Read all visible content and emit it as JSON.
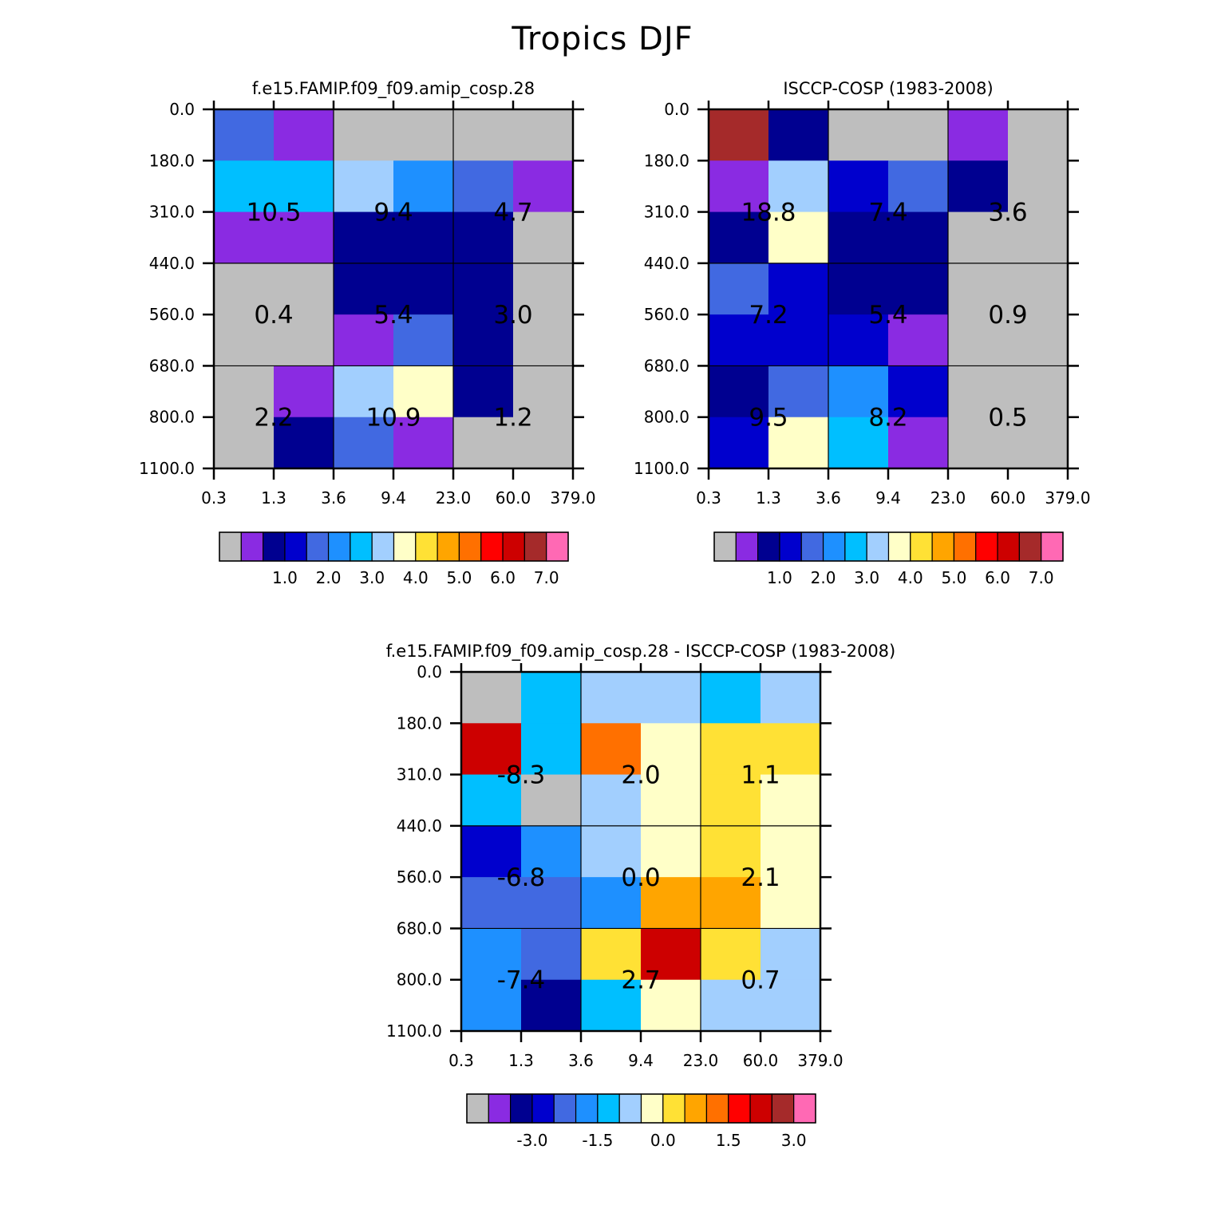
{
  "title": "Tropics DJF",
  "chart_data": [
    {
      "id": "model",
      "type": "heatmap",
      "title": "f.e15.FAMIP.f09_f09.amip_cosp.28",
      "x_tick_labels": [
        "0.3",
        "1.3",
        "3.6",
        "9.4",
        "23.0",
        "60.0",
        "379.0"
      ],
      "y_tick_labels": [
        "0.0",
        "180.0",
        "310.0",
        "440.0",
        "560.0",
        "680.0",
        "800.0",
        "1100.0"
      ],
      "colors": [
        [
          "royalblue",
          "blueviolet",
          "gray",
          "gray",
          "gray",
          "gray"
        ],
        [
          "deepskyblue",
          "deepskyblue",
          "lightblue",
          "dodgerblue",
          "royalblue",
          "blueviolet"
        ],
        [
          "blueviolet",
          "blueviolet",
          "navy",
          "navy",
          "navy",
          "gray"
        ],
        [
          "gray",
          "gray",
          "navy",
          "navy",
          "navy",
          "gray"
        ],
        [
          "gray",
          "gray",
          "blueviolet",
          "royalblue",
          "navy",
          "gray"
        ],
        [
          "gray",
          "blueviolet",
          "lightblue",
          "lightyellow",
          "navy",
          "gray"
        ],
        [
          "gray",
          "navy",
          "royalblue",
          "blueviolet",
          "gray",
          "gray"
        ]
      ],
      "box_values": [
        [
          "10.5",
          "9.4",
          "4.7"
        ],
        [
          "0.4",
          "5.4",
          "3.0"
        ],
        [
          "2.2",
          "10.9",
          "1.2"
        ]
      ],
      "colorbar_labels": [
        "1.0",
        "2.0",
        "3.0",
        "4.0",
        "5.0",
        "6.0",
        "7.0"
      ]
    },
    {
      "id": "obs",
      "type": "heatmap",
      "title": "ISCCP-COSP (1983-2008)",
      "x_tick_labels": [
        "0.3",
        "1.3",
        "3.6",
        "9.4",
        "23.0",
        "60.0",
        "379.0"
      ],
      "y_tick_labels": [
        "0.0",
        "180.0",
        "310.0",
        "440.0",
        "560.0",
        "680.0",
        "800.0",
        "1100.0"
      ],
      "colors": [
        [
          "brown",
          "navy",
          "gray",
          "gray",
          "blueviolet",
          "gray"
        ],
        [
          "blueviolet",
          "lightblue",
          "mediumblue",
          "royalblue",
          "navy",
          "gray"
        ],
        [
          "navy",
          "lightyellow",
          "navy",
          "navy",
          "gray",
          "gray"
        ],
        [
          "royalblue",
          "mediumblue",
          "navy",
          "navy",
          "gray",
          "gray"
        ],
        [
          "mediumblue",
          "mediumblue",
          "mediumblue",
          "blueviolet",
          "gray",
          "gray"
        ],
        [
          "navy",
          "royalblue",
          "dodgerblue",
          "mediumblue",
          "gray",
          "gray"
        ],
        [
          "mediumblue",
          "lightyellow",
          "deepskyblue",
          "blueviolet",
          "gray",
          "gray"
        ]
      ],
      "box_values": [
        [
          "18.8",
          "7.4",
          "3.6"
        ],
        [
          "7.2",
          "5.4",
          "0.9"
        ],
        [
          "9.5",
          "8.2",
          "0.5"
        ]
      ],
      "colorbar_labels": [
        "1.0",
        "2.0",
        "3.0",
        "4.0",
        "5.0",
        "6.0",
        "7.0"
      ]
    },
    {
      "id": "diff",
      "type": "heatmap",
      "title": "f.e15.FAMIP.f09_f09.amip_cosp.28 - ISCCP-COSP (1983-2008)",
      "x_tick_labels": [
        "0.3",
        "1.3",
        "3.6",
        "9.4",
        "23.0",
        "60.0",
        "379.0"
      ],
      "y_tick_labels": [
        "0.0",
        "180.0",
        "310.0",
        "440.0",
        "560.0",
        "680.0",
        "800.0",
        "1100.0"
      ],
      "colors": [
        [
          "gray",
          "deepskyblue",
          "lightblue",
          "lightblue",
          "deepskyblue",
          "lightblue"
        ],
        [
          "firebrick3",
          "deepskyblue",
          "orangered",
          "lightyellow",
          "gold",
          "gold"
        ],
        [
          "deepskyblue",
          "gray",
          "lightblue",
          "lightyellow",
          "gold",
          "lightyellow"
        ],
        [
          "mediumblue",
          "dodgerblue",
          "lightblue",
          "lightyellow",
          "gold",
          "lightyellow"
        ],
        [
          "royalblue",
          "royalblue",
          "dodgerblue",
          "orange",
          "orange",
          "lightyellow"
        ],
        [
          "dodgerblue",
          "royalblue",
          "gold",
          "firebrick3",
          "gold",
          "lightblue"
        ],
        [
          "dodgerblue",
          "navy",
          "deepskyblue",
          "lightyellow",
          "lightblue",
          "lightblue"
        ]
      ],
      "box_values": [
        [
          "-8.3",
          "2.0",
          "1.1"
        ],
        [
          "-6.8",
          "0.0",
          "2.1"
        ],
        [
          "-7.4",
          "2.7",
          "0.7"
        ]
      ],
      "colorbar_labels": [
        "-3.0",
        "-1.5",
        "0.0",
        "1.5",
        "3.0"
      ]
    }
  ],
  "palette": {
    "gray": "#bebebe",
    "blueviolet": "#8a2be2",
    "navy": "#000090",
    "mediumblue": "#0000cd",
    "royalblue": "#4169e1",
    "dodgerblue": "#1e90ff",
    "deepskyblue": "#00bfff",
    "lightblue": "#a2cffe",
    "lightyellow": "#ffffc8",
    "gold": "#ffe135",
    "orange": "#ffa500",
    "orangered": "#ff7000",
    "red": "#ff0000",
    "firebrick3": "#cd0000",
    "brown": "#a52a2a",
    "hotpink": "#ff69b4"
  },
  "colorbar_colors": [
    "gray",
    "blueviolet",
    "navy",
    "mediumblue",
    "royalblue",
    "dodgerblue",
    "deepskyblue",
    "lightblue",
    "lightyellow",
    "gold",
    "orange",
    "orangered",
    "red",
    "firebrick3",
    "brown",
    "hotpink"
  ]
}
